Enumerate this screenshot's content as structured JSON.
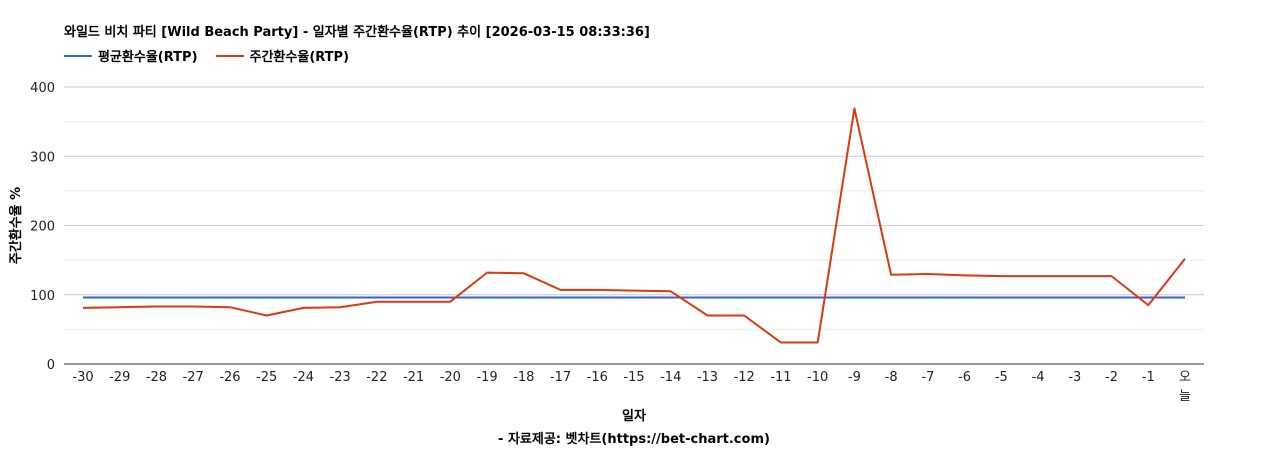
{
  "page_title": "와일드 비치 파티 [Wild Beach Party] - 일자별 주간환수율(RTP) 추이 [2026-03-15 08:33:36]",
  "footer": "- 자료제공: 벳차트(https://bet-chart.com)",
  "chart_data": {
    "type": "line",
    "title": "와일드 비치 파티 [Wild Beach Party] - 일자별 주간환수율(RTP) 추이 [2026-03-15 08:33:36]",
    "xlabel": "일자",
    "ylabel": "주간환수율 %",
    "ylim": [
      0,
      400
    ],
    "yticks": [
      "0",
      "100",
      "200",
      "300",
      "400"
    ],
    "grid": true,
    "legend_position": "top-left",
    "categories": [
      "-30",
      "-29",
      "-28",
      "-27",
      "-26",
      "-25",
      "-24",
      "-23",
      "-22",
      "-21",
      "-20",
      "-19",
      "-18",
      "-17",
      "-16",
      "-15",
      "-14",
      "-13",
      "-12",
      "-11",
      "-10",
      "-9",
      "-8",
      "-7",
      "-6",
      "-5",
      "-4",
      "-3",
      "-2",
      "-1",
      "오늘"
    ],
    "series": [
      {
        "name": "평균환수율(RTP)",
        "color": "#3366cc",
        "values": [
          96,
          96,
          96,
          96,
          96,
          96,
          96,
          96,
          96,
          96,
          96,
          96,
          96,
          96,
          96,
          96,
          96,
          96,
          96,
          96,
          96,
          96,
          96,
          96,
          96,
          96,
          96,
          96,
          96,
          96,
          96
        ]
      },
      {
        "name": "주간환수율(RTP)",
        "color": "#dc3912",
        "values": [
          81,
          82,
          83,
          83,
          82,
          70,
          81,
          82,
          90,
          90,
          90,
          132,
          131,
          107,
          107,
          106,
          105,
          70,
          70,
          31,
          31,
          369,
          129,
          130,
          128,
          127,
          127,
          127,
          127,
          85,
          152
        ]
      }
    ]
  }
}
